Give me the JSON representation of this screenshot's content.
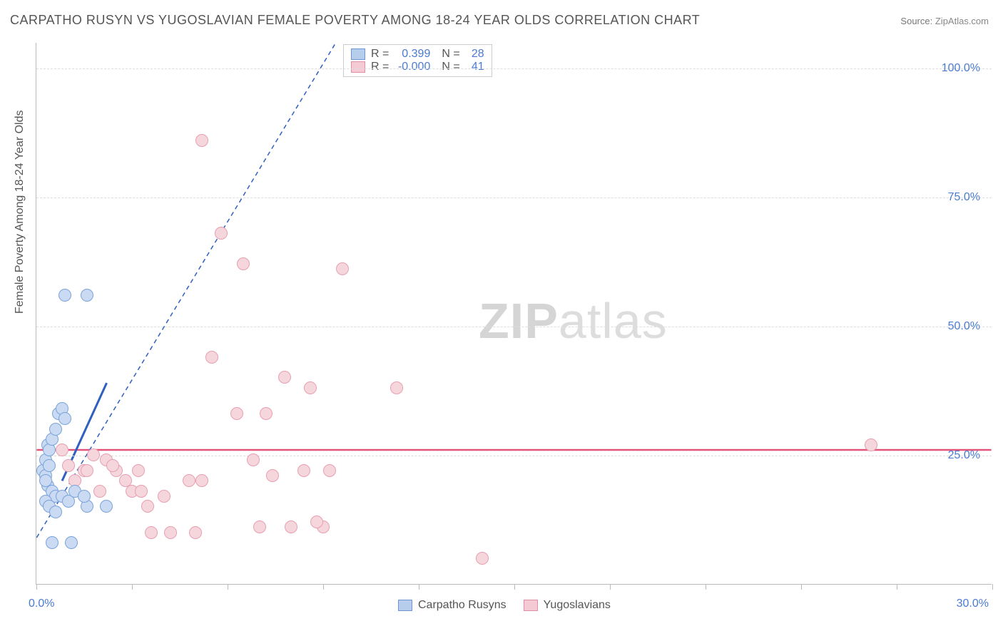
{
  "title": "CARPATHO RUSYN VS YUGOSLAVIAN FEMALE POVERTY AMONG 18-24 YEAR OLDS CORRELATION CHART",
  "source": {
    "label": "Source:",
    "link": "ZipAtlas.com"
  },
  "y_axis_label": "Female Poverty Among 18-24 Year Olds",
  "watermark": {
    "zip": "ZIP",
    "atlas": "atlas"
  },
  "chart": {
    "type": "scatter",
    "xlim": [
      0,
      30
    ],
    "ylim": [
      0,
      105
    ],
    "y_ticks": [
      25,
      50,
      75,
      100
    ],
    "y_tick_labels": [
      "25.0%",
      "50.0%",
      "75.0%",
      "100.0%"
    ],
    "x_ticks": [
      0,
      3,
      6,
      9,
      12,
      15,
      18,
      21,
      24,
      27,
      30
    ],
    "x_tick_labels": {
      "start": "0.0%",
      "end": "30.0%"
    },
    "grid_color": "#dddddd",
    "background_color": "#ffffff",
    "dot_radius": 9,
    "series_a": {
      "name": "Carpatho Rusyns",
      "fill": "#c9daf2",
      "stroke": "#7aa3da",
      "swatch_fill": "#b7cdec",
      "swatch_stroke": "#6f96d3",
      "trend_color": "#2f5fbf",
      "trend_solid": {
        "x1": 0.8,
        "y1": 20,
        "x2": 2.2,
        "y2": 39
      },
      "trend_dash": {
        "x1": 0.0,
        "y1": 9,
        "x2": 9.4,
        "y2": 105
      },
      "points": [
        [
          0.2,
          22
        ],
        [
          0.3,
          24
        ],
        [
          0.35,
          27
        ],
        [
          0.4,
          26
        ],
        [
          0.3,
          21
        ],
        [
          0.35,
          19
        ],
        [
          0.5,
          18
        ],
        [
          0.6,
          17
        ],
        [
          0.3,
          16
        ],
        [
          0.4,
          15
        ],
        [
          0.6,
          14
        ],
        [
          0.8,
          17
        ],
        [
          0.5,
          28
        ],
        [
          0.7,
          33
        ],
        [
          0.8,
          34
        ],
        [
          0.9,
          32
        ],
        [
          0.6,
          30
        ],
        [
          1.0,
          16
        ],
        [
          1.2,
          18
        ],
        [
          1.6,
          15
        ],
        [
          1.5,
          17
        ],
        [
          2.2,
          15
        ],
        [
          0.5,
          8
        ],
        [
          1.1,
          8
        ],
        [
          0.9,
          56
        ],
        [
          1.6,
          56
        ],
        [
          0.3,
          20
        ],
        [
          0.4,
          23
        ]
      ]
    },
    "series_b": {
      "name": "Yugoslavians",
      "fill": "#f6d6dd",
      "stroke": "#e69fb0",
      "swatch_fill": "#f4cbd5",
      "swatch_stroke": "#e08ea3",
      "trend_color": "#e4537a",
      "trend_y": 26,
      "points": [
        [
          0.8,
          26
        ],
        [
          1.0,
          23
        ],
        [
          1.2,
          20
        ],
        [
          1.5,
          22
        ],
        [
          1.8,
          25
        ],
        [
          2.0,
          18
        ],
        [
          2.2,
          24
        ],
        [
          1.6,
          22
        ],
        [
          2.5,
          22
        ],
        [
          2.8,
          20
        ],
        [
          3.0,
          18
        ],
        [
          3.2,
          22
        ],
        [
          3.5,
          15
        ],
        [
          3.3,
          18
        ],
        [
          4.0,
          17
        ],
        [
          4.2,
          10
        ],
        [
          3.6,
          10
        ],
        [
          4.8,
          20
        ],
        [
          5.0,
          10
        ],
        [
          5.2,
          20
        ],
        [
          5.5,
          44
        ],
        [
          5.2,
          86
        ],
        [
          5.8,
          68
        ],
        [
          6.3,
          33
        ],
        [
          6.5,
          62
        ],
        [
          6.8,
          24
        ],
        [
          7.0,
          11
        ],
        [
          7.2,
          33
        ],
        [
          7.4,
          21
        ],
        [
          7.8,
          40
        ],
        [
          8.0,
          11
        ],
        [
          8.4,
          22
        ],
        [
          8.6,
          38
        ],
        [
          9.0,
          11
        ],
        [
          9.2,
          22
        ],
        [
          9.6,
          61
        ],
        [
          11.3,
          38
        ],
        [
          8.8,
          12
        ],
        [
          14.0,
          5
        ],
        [
          26.2,
          27
        ],
        [
          2.4,
          23
        ]
      ]
    }
  },
  "stats_box": {
    "rows": [
      {
        "swatch": "a",
        "r_label": "R =",
        "r_val": "0.399",
        "n_label": "N =",
        "n_val": "28"
      },
      {
        "swatch": "b",
        "r_label": "R =",
        "r_val": "-0.000",
        "n_label": "N =",
        "n_val": "41"
      }
    ]
  },
  "legend": {
    "items": [
      {
        "swatch": "a",
        "label": "Carpatho Rusyns"
      },
      {
        "swatch": "b",
        "label": "Yugoslavians"
      }
    ]
  }
}
